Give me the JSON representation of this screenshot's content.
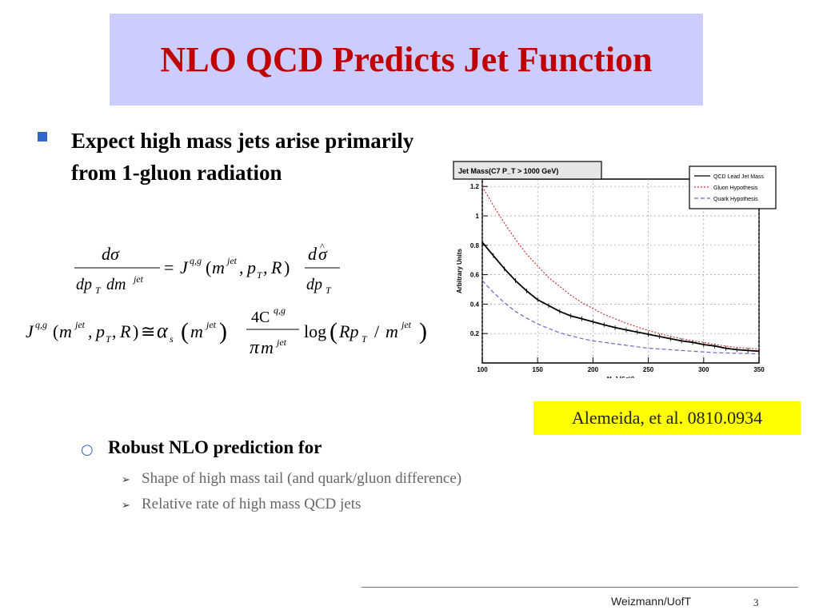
{
  "slide": {
    "title": "NLO QCD Predicts Jet Function",
    "bullet1": [
      "Expect high mass jets arise primarily",
      "from 1-gluon radiation"
    ],
    "bullet2": "Robust NLO prediction for",
    "sub_bullets": [
      "Shape of high mass tail (and quark/gluon difference)",
      "Relative rate of high mass QCD jets"
    ],
    "citation": "Alemeida, et al. 0810.0934",
    "footer_org": "Weizmann/UofT",
    "page_number": "3",
    "colors": {
      "title": "#c00000",
      "title_bg": "#ccccff",
      "citation_bg": "#ffff00",
      "bullet": "#3366cc"
    }
  },
  "icons": {
    "bullet1": "square-bullet-icon",
    "bullet2": "circle-bullet-icon",
    "sub_bullets": "arrow-bullet-icon"
  },
  "chart_data": {
    "type": "line",
    "title": "Jet Mass(C7 P_T > 1000 GeV)",
    "xlabel": "M_J (GeV)",
    "ylabel": "Arbitrary Units",
    "xlim": [
      100,
      350
    ],
    "ylim": [
      0,
      1.25
    ],
    "x_ticks": [
      "100",
      "150",
      "200",
      "250",
      "300",
      "350"
    ],
    "y_ticks": [
      "0.2",
      "0.4",
      "0.6",
      "0.8",
      "1",
      "1.2"
    ],
    "grid": true,
    "legend_position": "top-right",
    "series": [
      {
        "name": "QCD Lead Jet Mass",
        "color": "#000000",
        "style": "solid-histogram",
        "x": [
          100,
          110,
          120,
          130,
          140,
          150,
          160,
          170,
          180,
          190,
          200,
          210,
          220,
          230,
          240,
          250,
          260,
          270,
          280,
          290,
          300,
          310,
          320,
          330,
          340,
          350
        ],
        "y": [
          0.82,
          0.73,
          0.64,
          0.56,
          0.49,
          0.43,
          0.39,
          0.35,
          0.32,
          0.3,
          0.28,
          0.26,
          0.24,
          0.225,
          0.21,
          0.195,
          0.18,
          0.165,
          0.15,
          0.14,
          0.125,
          0.115,
          0.1,
          0.09,
          0.085,
          0.08
        ]
      },
      {
        "name": "Gluon Hypothesis",
        "color": "#cc3333",
        "style": "dotted",
        "x": [
          100,
          110,
          120,
          130,
          140,
          150,
          160,
          170,
          180,
          190,
          200,
          210,
          220,
          230,
          240,
          250,
          260,
          270,
          280,
          290,
          300,
          310,
          320,
          330,
          340,
          350
        ],
        "y": [
          1.2,
          1.07,
          0.95,
          0.84,
          0.74,
          0.66,
          0.58,
          0.52,
          0.46,
          0.41,
          0.37,
          0.33,
          0.3,
          0.27,
          0.245,
          0.22,
          0.2,
          0.18,
          0.165,
          0.15,
          0.14,
          0.125,
          0.115,
          0.105,
          0.1,
          0.095
        ]
      },
      {
        "name": "Quark Hypothesis",
        "color": "#6666cc",
        "style": "dashed",
        "x": [
          100,
          110,
          120,
          130,
          140,
          150,
          160,
          170,
          180,
          190,
          200,
          210,
          220,
          230,
          240,
          250,
          260,
          270,
          280,
          290,
          300,
          310,
          320,
          330,
          340,
          350
        ],
        "y": [
          0.56,
          0.48,
          0.41,
          0.35,
          0.305,
          0.265,
          0.235,
          0.205,
          0.185,
          0.165,
          0.15,
          0.14,
          0.13,
          0.12,
          0.11,
          0.1,
          0.095,
          0.09,
          0.085,
          0.08,
          0.075,
          0.07,
          0.068,
          0.066,
          0.064,
          0.062
        ]
      }
    ]
  }
}
